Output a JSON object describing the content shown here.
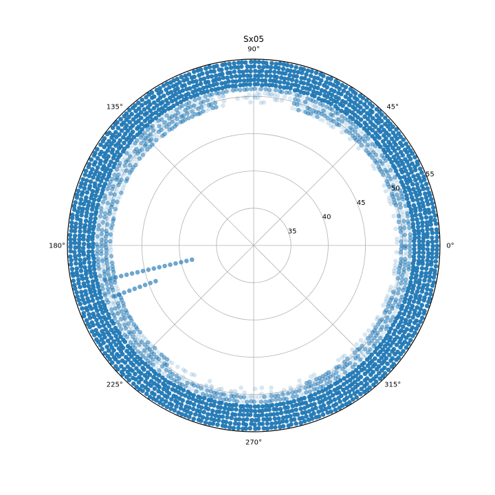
{
  "chart_data": {
    "type": "scatter",
    "projection": "polar",
    "title": "Sx05",
    "theta_ticks": [
      0,
      45,
      90,
      135,
      180,
      225,
      270,
      315
    ],
    "theta_tick_labels": [
      "0°",
      "45°",
      "90°",
      "135°",
      "180°",
      "225°",
      "270°",
      "315°"
    ],
    "r_ticks": [
      35,
      40,
      45,
      50,
      55
    ],
    "r_tick_labels": [
      "35",
      "40",
      "45",
      "50",
      "55"
    ],
    "r_tick_label_angle_deg": 22.5,
    "rlim": [
      30,
      55
    ],
    "grid": true,
    "legend": "none",
    "marker_color": "#1f77b4",
    "point_rings_r": [
      49.2,
      49.8,
      50.4,
      51.0,
      51.6,
      52.2,
      52.8,
      53.4,
      54.0,
      54.6
    ],
    "density_ring_r": 50.2,
    "dense_rings_r": [
      51.6,
      52.2,
      52.8,
      53.4,
      54.0,
      54.6
    ],
    "sparse_sectors_deg": [
      {
        "from": 75,
        "to": 105,
        "min_r": 50.5
      },
      {
        "from": 0,
        "to": 60,
        "min_r": 49.5
      },
      {
        "from": 290,
        "to": 360,
        "min_r": 49.5
      },
      {
        "from": 235,
        "to": 290,
        "min_r": 50.0
      }
    ],
    "inner_spokes": [
      {
        "theta_deg": 193,
        "r_from": 38.5,
        "r_to": 50.5
      },
      {
        "theta_deg": 200,
        "r_from": 44.0,
        "r_to": 50.5
      }
    ],
    "angular_step_deg": 1.3
  }
}
